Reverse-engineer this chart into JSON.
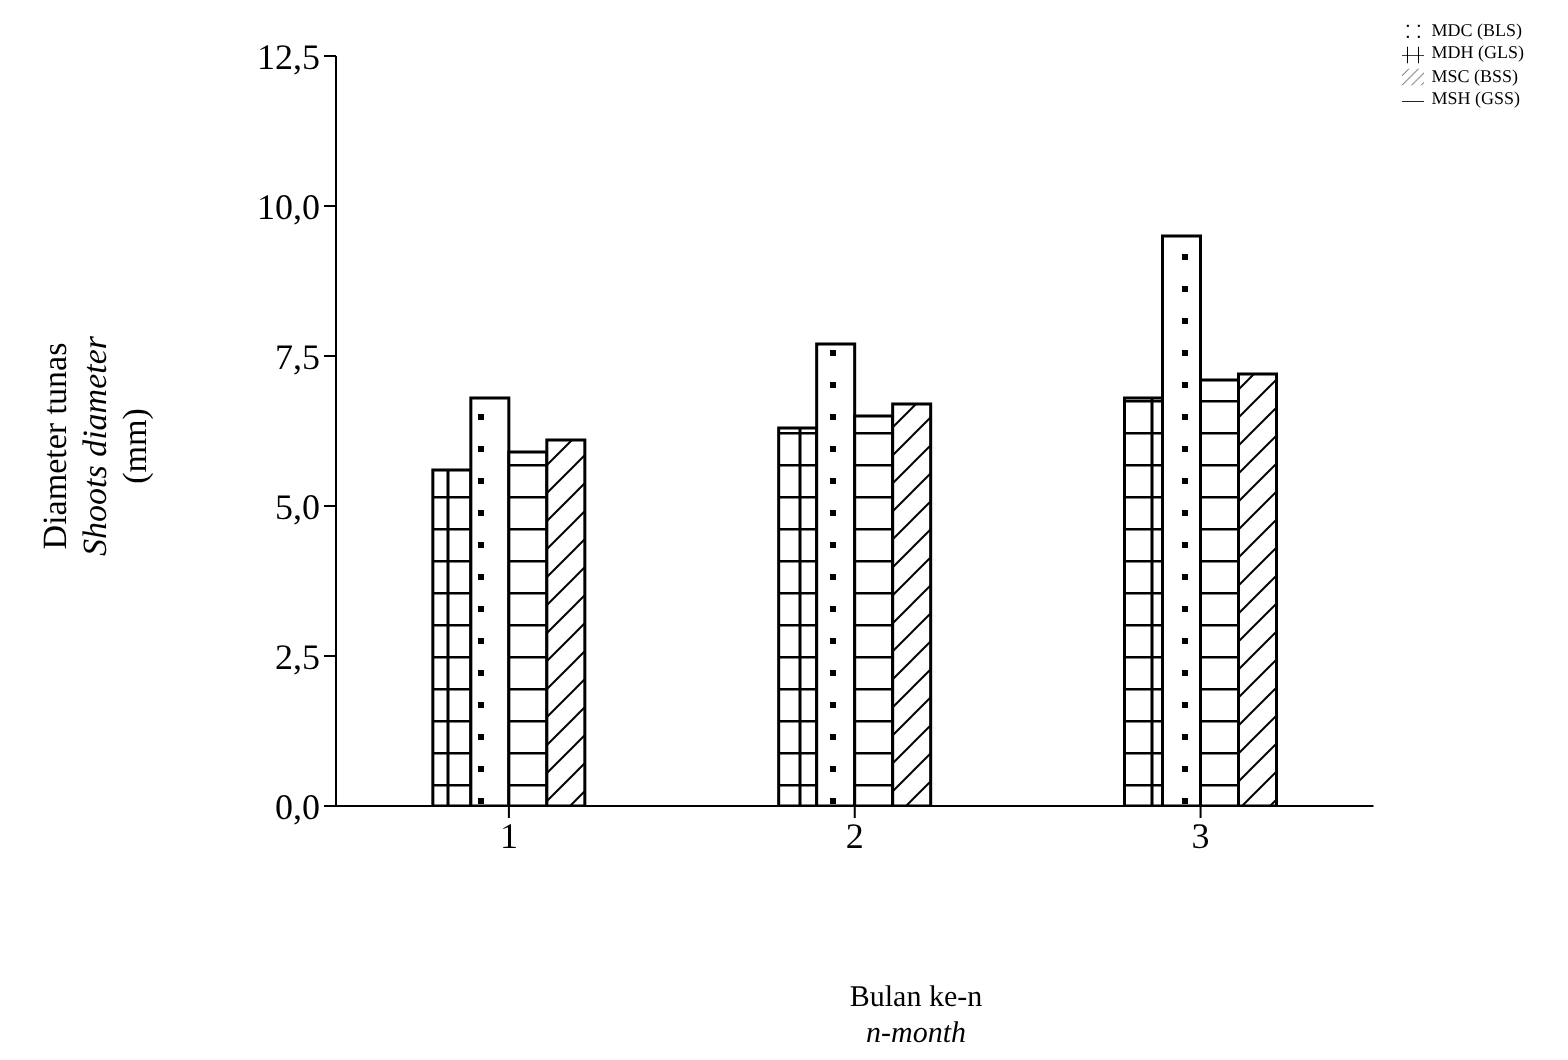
{
  "chart_data": {
    "type": "bar",
    "xlabel": "Bulan ke-n\nn-month",
    "ylabel": "Diameter tunas\nShoots diameter\n(mm)",
    "categories": [
      "1",
      "2",
      "3"
    ],
    "series": [
      {
        "name": "MDH (GLS)",
        "color": "#000000",
        "values": [
          5.6,
          6.3,
          6.8
        ]
      },
      {
        "name": "MDC (BLS)",
        "color": "#000000",
        "values": [
          6.8,
          7.7,
          9.5
        ]
      },
      {
        "name": "MSH (GSS)",
        "color": "#000000",
        "values": [
          5.9,
          6.5,
          7.1
        ]
      },
      {
        "name": "MSC (BSS)",
        "color": "#000000",
        "values": [
          6.1,
          6.7,
          7.2
        ]
      }
    ],
    "ylim": [
      0,
      12.5
    ],
    "yticks": [
      {
        "value": 0,
        "label": "0,0"
      },
      {
        "value": 2.5,
        "label": "2,5"
      },
      {
        "value": 5,
        "label": "5,0"
      },
      {
        "value": 7.5,
        "label": "7,5"
      },
      {
        "value": 10,
        "label": "10,0"
      },
      {
        "value": 12.5,
        "label": "12,5"
      }
    ],
    "grid": false,
    "legend": "top right"
  }
}
